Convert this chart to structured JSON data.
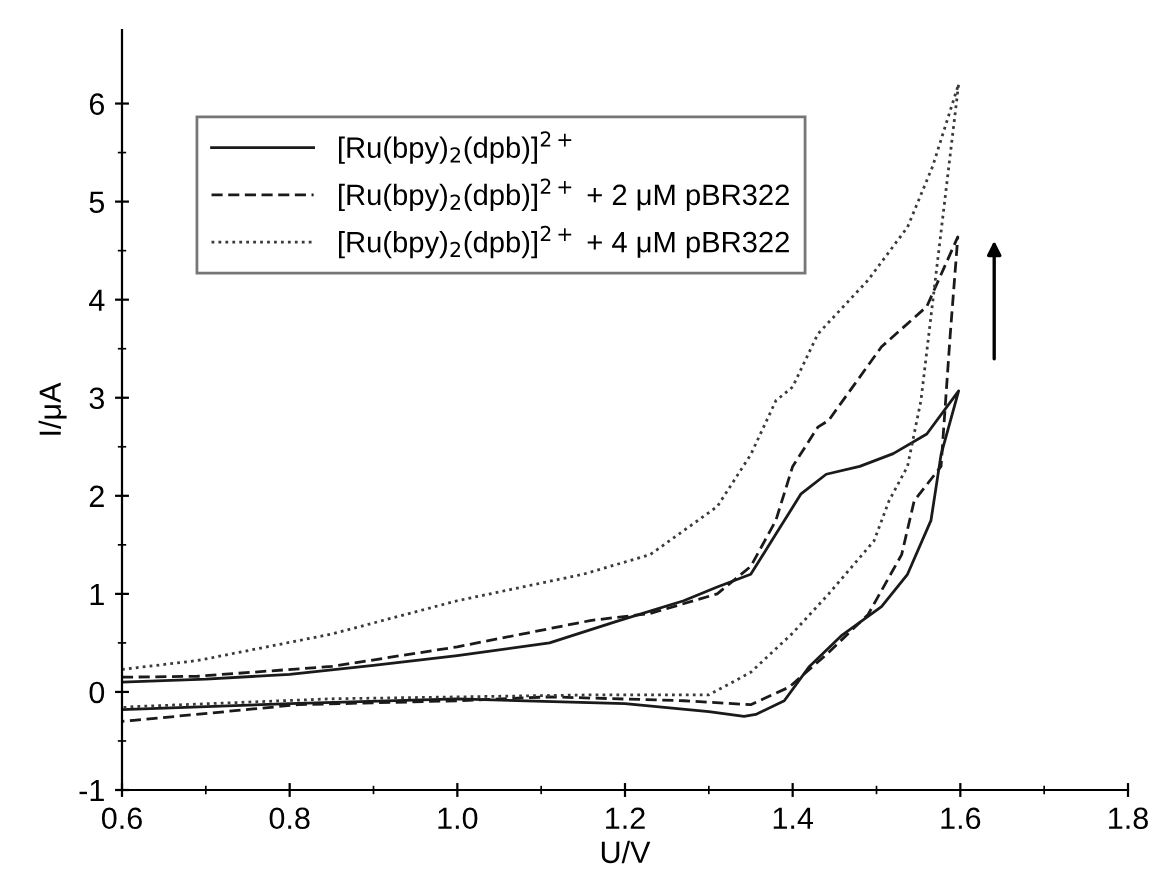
{
  "chart_data": {
    "type": "line",
    "xlabel": "U/V",
    "ylabel": "I/μA",
    "xlim": [
      0.6,
      1.8
    ],
    "xticks": [
      0.6,
      0.8,
      {
        "value": 1,
        "label": "1.0"
      },
      1.2,
      1.4,
      1.6,
      1.8
    ],
    "ylim": [
      -1,
      6.75
    ],
    "yticks": [
      -1,
      0,
      1,
      2,
      3,
      4,
      5,
      6
    ],
    "legend": "top left",
    "grid": false,
    "marker": "none",
    "series": [
      {
        "name": "[Ru(bpy)$_{2}$(dpb)]$^{2+}$",
        "color": "#1a1a1a",
        "line_style": "solid",
        "x": [
          0.6,
          0.7,
          0.8,
          0.9,
          1.0,
          1.11,
          1.19,
          1.27,
          1.31,
          1.35,
          1.38,
          1.41,
          1.44,
          1.48,
          1.52,
          1.56,
          1.598,
          1.577,
          1.565,
          1.537,
          1.506,
          1.459,
          1.42,
          1.39,
          1.356,
          1.342,
          1.3,
          1.2,
          1.0,
          0.8,
          0.6
        ],
        "values": [
          0.1,
          0.13,
          0.18,
          0.27,
          0.37,
          0.5,
          0.72,
          0.93,
          1.07,
          1.2,
          1.61,
          2.02,
          2.22,
          2.3,
          2.43,
          2.63,
          3.07,
          2.42,
          1.75,
          1.2,
          0.87,
          0.58,
          0.26,
          -0.09,
          -0.23,
          -0.25,
          -0.2,
          -0.12,
          -0.07,
          -0.12,
          -0.18
        ]
      },
      {
        "name": "[Ru(bpy)$_{2}$(dpb)]$^{2+}$ + 2 μM pBR322",
        "color": "#1a1a1a",
        "line_style": "dashed",
        "x": [
          0.6,
          0.69,
          0.85,
          1.0,
          1.16,
          1.23,
          1.31,
          1.35,
          1.38,
          1.4,
          1.43,
          1.443,
          1.506,
          1.56,
          1.597,
          1.588,
          1.577,
          1.545,
          1.53,
          1.49,
          1.44,
          1.396,
          1.35,
          1.27,
          1.11,
          1.0,
          0.81,
          0.614,
          0.6
        ],
        "values": [
          0.15,
          0.16,
          0.26,
          0.46,
          0.73,
          0.8,
          1.0,
          1.28,
          1.75,
          2.3,
          2.7,
          2.77,
          3.52,
          3.93,
          4.64,
          3.65,
          2.3,
          1.95,
          1.4,
          0.79,
          0.38,
          0.05,
          -0.13,
          -0.09,
          -0.05,
          -0.09,
          -0.13,
          -0.29,
          -0.3
        ]
      },
      {
        "name": "[Ru(bpy)$_{2}$(dpb)]$^{2+}$ + 4 μM pBR322",
        "color": "#3a3a3a",
        "line_style": "dotted",
        "x": [
          0.6,
          0.69,
          0.85,
          1.0,
          1.15,
          1.23,
          1.31,
          1.35,
          1.38,
          1.4,
          1.43,
          1.49,
          1.537,
          1.567,
          1.598,
          1.553,
          1.537,
          1.515,
          1.497,
          1.443,
          1.4,
          1.35,
          1.3,
          1.16,
          0.85,
          0.614,
          0.6
        ],
        "values": [
          0.23,
          0.32,
          0.59,
          0.93,
          1.2,
          1.4,
          1.89,
          2.42,
          2.97,
          3.11,
          3.65,
          4.2,
          4.74,
          5.36,
          6.2,
          2.97,
          2.3,
          1.95,
          1.54,
          1.0,
          0.6,
          0.2,
          -0.03,
          -0.03,
          -0.07,
          -0.15,
          -0.16
        ]
      }
    ]
  }
}
